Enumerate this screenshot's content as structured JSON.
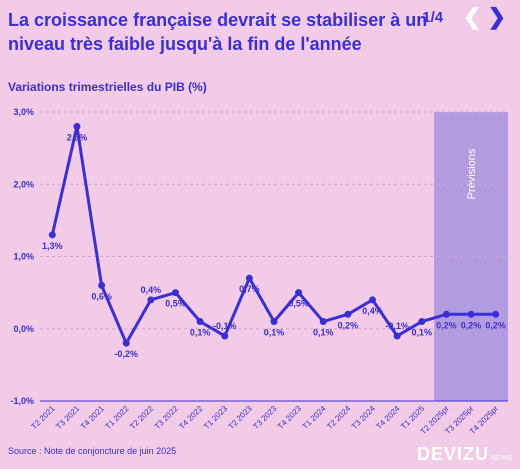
{
  "header": {
    "title": "La croissance française devrait se stabiliser à un niveau très faible jusqu'à la fin de l'année",
    "page_indicator": "1/4",
    "prev_icon": "chevron-left-icon",
    "next_icon": "chevron-right-icon"
  },
  "footer": {
    "source": "Source : Note de conjoncture de juin 2025",
    "logo_main": "DEVIZU",
    "logo_sub": "NEWS"
  },
  "colors": {
    "background": "#f2cbe6",
    "accent": "#3a2fd6",
    "forecast_band": "#b39be0",
    "white": "#ffffff"
  },
  "chart_data": {
    "type": "line",
    "title": "Variations trimestrielles du PIB (%)",
    "categories": [
      "T2 2021",
      "T3 2021",
      "T4 2021",
      "T1 2022",
      "T2 2022",
      "T3 2022",
      "T4 2022",
      "T1 2023",
      "T2 2023",
      "T3 2023",
      "T4 2023",
      "T1 2024",
      "T2 2024",
      "T3 2024",
      "T4 2024",
      "T1 2025",
      "T2 2025pr",
      "T3 2025pr",
      "T4 2025pr"
    ],
    "series": [
      {
        "values": [
          1.3,
          2.8,
          0.6,
          -0.2,
          0.4,
          0.5,
          0.1,
          -0.1,
          0.7,
          0.1,
          0.5,
          0.1,
          0.2,
          0.4,
          -0.1,
          0.1,
          0.2,
          0.2,
          0.2
        ],
        "labels": [
          "1,3%",
          "2,8%",
          "0,6%",
          "-0,2%",
          "0,4%",
          "0,5%",
          "0,1%",
          "-0,1%",
          "0,7%",
          "0,1%",
          "0,5%",
          "0,1%",
          "0,2%",
          "0,4%",
          "-0,1%",
          "0,1%",
          "0,2%",
          "0,2%",
          "0,2%"
        ]
      }
    ],
    "y_ticks": [
      -1,
      0,
      1,
      2,
      3
    ],
    "y_tick_labels": [
      "-1,0%",
      "0,0%",
      "1,0%",
      "2,0%",
      "3,0%"
    ],
    "ylim": [
      -1,
      3
    ],
    "grid": true,
    "forecast": {
      "label": "Prévisions",
      "from_category": "T2 2025pr",
      "to_category": "T4 2025pr"
    },
    "label_positions": [
      "below",
      "below",
      "below",
      "below",
      "above",
      "below",
      "below",
      "above",
      "below",
      "below",
      "below",
      "below",
      "below",
      "below",
      "above",
      "below",
      "below",
      "below",
      "below"
    ]
  }
}
